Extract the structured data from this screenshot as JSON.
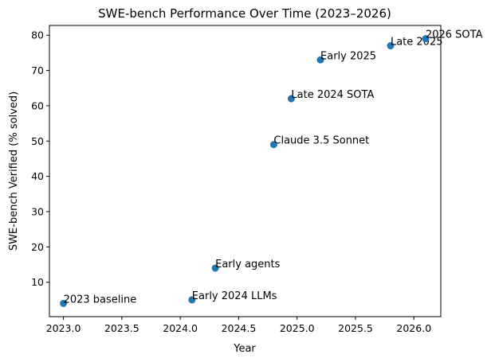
{
  "chart_data": {
    "type": "scatter",
    "title": "SWE-bench Performance Over Time (2023–2026)",
    "xlabel": "Year",
    "ylabel": "SWE-bench Verified (% solved)",
    "x": [
      2023.0,
      2024.1,
      2024.3,
      2024.8,
      2024.95,
      2025.2,
      2025.8,
      2026.1
    ],
    "values": [
      4,
      5,
      14,
      49,
      62,
      73,
      77,
      79
    ],
    "labels": [
      "2023 baseline",
      "Early 2024 LLMs",
      "Early agents",
      "Claude 3.5 Sonnet",
      "Late 2024 SOTA",
      "Early 2025",
      "Late 2025",
      "2026 SOTA"
    ],
    "color": "#1f77b4",
    "xlim": [
      2022.88,
      2026.23
    ],
    "ylim": [
      0.25,
      82.75
    ],
    "xticks": [
      {
        "value": 2023.0,
        "label": "2023.0"
      },
      {
        "value": 2023.5,
        "label": "2023.5"
      },
      {
        "value": 2024.0,
        "label": "2024.0"
      },
      {
        "value": 2024.5,
        "label": "2024.5"
      },
      {
        "value": 2025.0,
        "label": "2025.0"
      },
      {
        "value": 2025.5,
        "label": "2025.5"
      },
      {
        "value": 2026.0,
        "label": "2026.0"
      }
    ],
    "yticks": [
      10,
      20,
      30,
      40,
      50,
      60,
      70,
      80
    ],
    "grid": false
  }
}
